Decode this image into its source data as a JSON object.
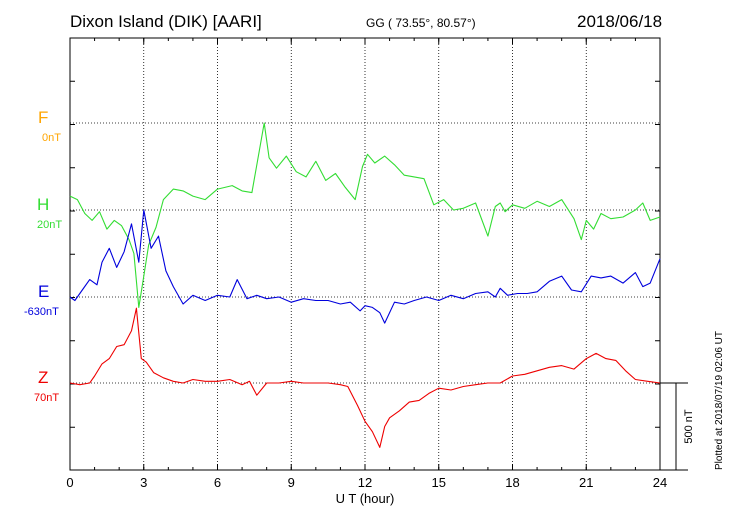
{
  "header": {
    "station": "Dixon Island (DIK)  [AARI]",
    "coords": "GG ( 73.55°,  80.57°)",
    "date": "2018/06/18"
  },
  "plotted_note": "Plotted at 2018/07/19 02:06 UT",
  "chart_data": {
    "type": "line",
    "title": "Dixon Island (DIK)  [AARI]",
    "xlabel": "U T (hour)",
    "xlim": [
      0,
      24
    ],
    "x_ticks": [
      0,
      3,
      6,
      9,
      12,
      15,
      18,
      21,
      24
    ],
    "x_tick_labels": [
      "0",
      "3",
      "6",
      "9",
      "12",
      "15",
      "18",
      "21",
      "24"
    ],
    "grid": true,
    "scale_bar": {
      "label": "500 nT",
      "value_nT": 500
    },
    "series": [
      {
        "name": "F",
        "offset_label": "0nT",
        "color": "#ffa500",
        "x": [],
        "values": []
      },
      {
        "name": "H",
        "offset_label": "20nT",
        "color": "#33dd33",
        "x": [
          0,
          0.3,
          0.6,
          0.9,
          1.2,
          1.5,
          1.8,
          2.1,
          2.4,
          2.6,
          2.8,
          3.0,
          3.2,
          3.5,
          3.8,
          4.2,
          4.6,
          5.0,
          5.5,
          6.0,
          6.3,
          6.6,
          7.0,
          7.4,
          7.7,
          7.9,
          8.1,
          8.4,
          8.8,
          9.2,
          9.6,
          10.0,
          10.4,
          10.8,
          11.2,
          11.6,
          11.9,
          12.1,
          12.4,
          12.8,
          13.2,
          13.6,
          14.0,
          14.4,
          14.8,
          15.2,
          15.6,
          16.0,
          16.5,
          17.0,
          17.3,
          17.5,
          17.7,
          18.0,
          18.5,
          19.0,
          19.5,
          20.0,
          20.5,
          20.8,
          21.0,
          21.3,
          21.6,
          22.0,
          22.5,
          23.0,
          23.3,
          23.6,
          24.0
        ],
        "values": [
          80,
          60,
          -20,
          -60,
          -10,
          -110,
          -60,
          -90,
          -170,
          -250,
          -560,
          -380,
          -200,
          -100,
          60,
          120,
          110,
          80,
          60,
          120,
          130,
          140,
          110,
          100,
          340,
          500,
          300,
          240,
          310,
          220,
          190,
          280,
          170,
          210,
          130,
          60,
          250,
          320,
          270,
          310,
          260,
          200,
          190,
          180,
          30,
          60,
          0,
          10,
          40,
          -150,
          20,
          40,
          -10,
          30,
          10,
          50,
          20,
          60,
          -50,
          -170,
          -60,
          -110,
          -20,
          -50,
          -40,
          0,
          40,
          -60,
          -40
        ]
      },
      {
        "name": "E",
        "offset_label": "-630nT",
        "color": "#0000dd",
        "x": [
          0,
          0.2,
          0.5,
          0.8,
          1.1,
          1.3,
          1.6,
          1.9,
          2.2,
          2.5,
          2.8,
          3.0,
          3.3,
          3.6,
          3.9,
          4.2,
          4.6,
          5.0,
          5.5,
          6.0,
          6.5,
          6.8,
          7.2,
          7.6,
          8.0,
          8.5,
          9.0,
          9.5,
          10.0,
          10.5,
          11.0,
          11.4,
          11.8,
          12.0,
          12.3,
          12.6,
          12.8,
          13.2,
          13.6,
          14.0,
          14.5,
          15.0,
          15.5,
          16.0,
          16.5,
          17.0,
          17.3,
          17.5,
          17.8,
          18.2,
          18.6,
          19.0,
          19.5,
          20.0,
          20.4,
          20.8,
          21.2,
          21.6,
          22.0,
          22.5,
          23.0,
          23.3,
          23.6,
          24.0
        ],
        "values": [
          0,
          -20,
          40,
          100,
          70,
          200,
          280,
          170,
          260,
          420,
          200,
          500,
          280,
          350,
          150,
          60,
          -40,
          10,
          -20,
          10,
          0,
          100,
          -10,
          10,
          -10,
          0,
          -30,
          -10,
          -20,
          -20,
          -40,
          -30,
          -80,
          -50,
          -60,
          -90,
          -150,
          -30,
          -40,
          -20,
          0,
          -20,
          10,
          -10,
          20,
          30,
          0,
          50,
          10,
          20,
          20,
          30,
          90,
          120,
          40,
          30,
          120,
          110,
          120,
          80,
          140,
          60,
          80,
          220
        ]
      },
      {
        "name": "Z",
        "offset_label": "70nT",
        "color": "#ee0000",
        "x": [
          0,
          0.4,
          0.8,
          1.0,
          1.3,
          1.6,
          1.9,
          2.2,
          2.5,
          2.7,
          2.9,
          3.1,
          3.4,
          3.8,
          4.2,
          4.6,
          5.0,
          5.5,
          6.0,
          6.5,
          7.0,
          7.3,
          7.6,
          8.0,
          8.5,
          9.0,
          9.5,
          10.0,
          10.5,
          11.0,
          11.3,
          11.7,
          12.0,
          12.3,
          12.6,
          12.8,
          13.0,
          13.4,
          13.8,
          14.2,
          14.6,
          15.0,
          15.5,
          16.0,
          16.5,
          17.0,
          17.5,
          18.0,
          18.5,
          19.0,
          19.5,
          20.0,
          20.5,
          21.0,
          21.4,
          21.8,
          22.2,
          22.6,
          23.0,
          23.5,
          24.0
        ],
        "values": [
          0,
          -10,
          0,
          40,
          110,
          140,
          210,
          220,
          300,
          430,
          140,
          120,
          60,
          30,
          10,
          0,
          20,
          10,
          10,
          20,
          -10,
          10,
          -70,
          0,
          0,
          10,
          0,
          0,
          0,
          -10,
          -20,
          -130,
          -220,
          -280,
          -370,
          -250,
          -200,
          -160,
          -110,
          -100,
          -60,
          -30,
          -40,
          -20,
          -10,
          0,
          0,
          40,
          50,
          70,
          90,
          100,
          80,
          140,
          170,
          140,
          130,
          70,
          20,
          10,
          0
        ]
      }
    ]
  }
}
